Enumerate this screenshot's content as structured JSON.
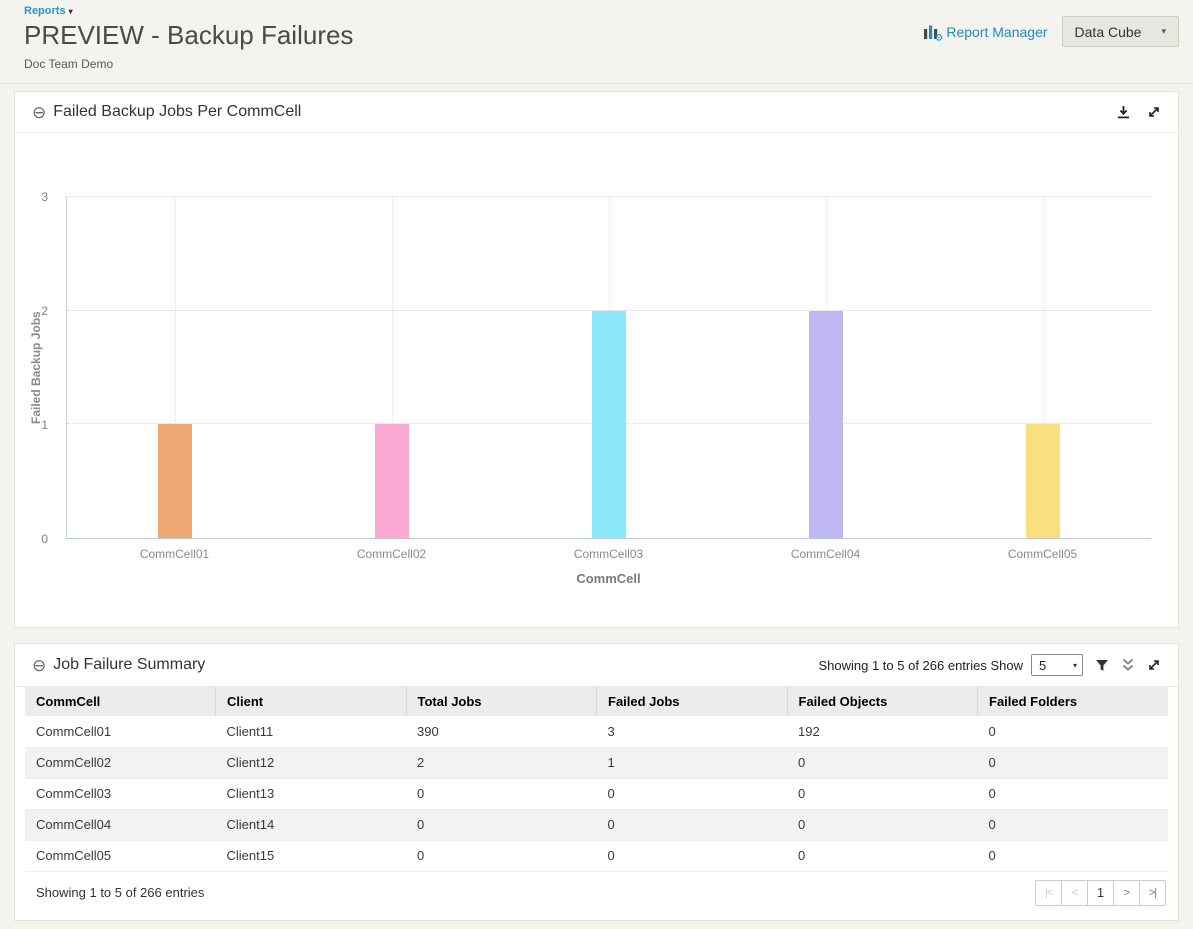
{
  "header": {
    "breadcrumb_label": "Reports",
    "title": "PREVIEW - Backup Failures",
    "subtitle": "Doc Team Demo",
    "report_manager_label": "Report Manager",
    "data_cube_label": "Data Cube"
  },
  "chart_panel": {
    "title": "Failed Backup Jobs Per CommCell"
  },
  "chart_data": {
    "type": "bar",
    "title": "Failed Backup Jobs Per CommCell",
    "categories": [
      "CommCell01",
      "CommCell02",
      "CommCell03",
      "CommCell04",
      "CommCell05"
    ],
    "values": [
      1,
      1,
      2,
      2,
      1
    ],
    "bar_colors": [
      "#eea873",
      "#fba8d3",
      "#8ae8f8",
      "#bfb7f1",
      "#fadf7e"
    ],
    "xlabel": "CommCell",
    "ylabel": "Failed Backup Jobs",
    "ylim": [
      0,
      3
    ],
    "yticks": [
      0,
      1,
      2,
      3
    ],
    "grid": "dotted-horizontal-and-vertical",
    "legend": "none"
  },
  "table_panel": {
    "title": "Job Failure Summary",
    "header_status_text": "Showing 1 to 5 of 266 entries Show",
    "page_size_value": "5",
    "columns": [
      "CommCell",
      "Client",
      "Total Jobs",
      "Failed Jobs",
      "Failed Objects",
      "Failed Folders"
    ],
    "rows": [
      [
        "CommCell01",
        "Client11",
        "390",
        "3",
        "192",
        "0"
      ],
      [
        "CommCell02",
        "Client12",
        "2",
        "1",
        "0",
        "0"
      ],
      [
        "CommCell03",
        "Client13",
        "0",
        "0",
        "0",
        "0"
      ],
      [
        "CommCell04",
        "Client14",
        "0",
        "0",
        "0",
        "0"
      ],
      [
        "CommCell05",
        "Client15",
        "0",
        "0",
        "0",
        "0"
      ]
    ],
    "footer_status_text": "Showing 1 to 5 of 266 entries",
    "pagination": {
      "first": "|<",
      "prev": "<",
      "current_page": "1",
      "next": ">",
      "last": ">|"
    }
  },
  "icons": {
    "caret_down_glyph": "▾",
    "collapse_glyph": "⊖",
    "gear_glyph": "⚙"
  },
  "colors": {
    "link_blue": "#1e8bc3",
    "page_background": "#f4f3ee",
    "table_header_background": "#ececec",
    "striped_row_background": "#f2f2f2"
  }
}
